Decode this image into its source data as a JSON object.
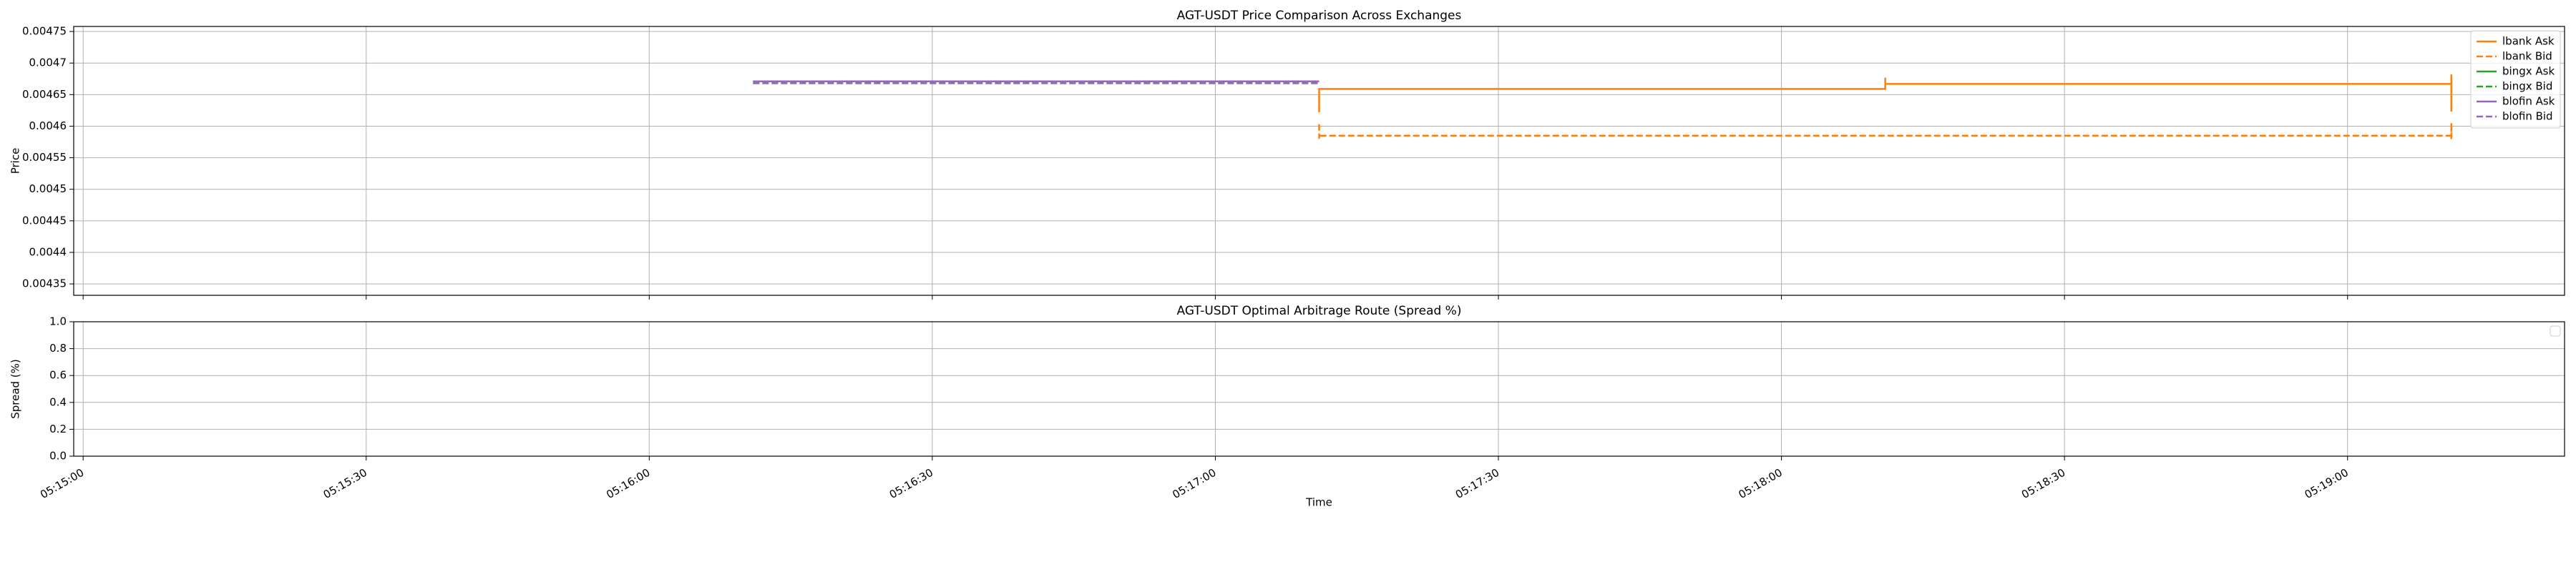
{
  "chart_data": [
    {
      "type": "line",
      "title": "AGT-USDT Price Comparison Across Exchanges",
      "ylabel": "Price",
      "ylim": [
        0.004332,
        0.004758
      ],
      "yticks": [
        0.00435,
        0.0044,
        0.00445,
        0.0045,
        0.00455,
        0.0046,
        0.00465,
        0.0047,
        0.00475
      ],
      "grid": true,
      "legend": "upper right",
      "series": [
        {
          "name": "lbank Ask",
          "color": "#ff7f0e",
          "style": "solid",
          "x": [
            "05:17:11",
            "05:17:11",
            "05:18:11",
            "05:18:11",
            "05:18:11",
            "05:19:11",
            "05:19:11",
            "05:19:11"
          ],
          "values": [
            0.004622,
            0.004659,
            0.004659,
            0.004677,
            0.004667,
            0.004667,
            0.004682,
            0.004623
          ]
        },
        {
          "name": "lbank Bid",
          "color": "#ff7f0e",
          "style": "dashed",
          "x": [
            "05:17:11",
            "05:17:11",
            "05:17:11",
            "05:18:11",
            "05:19:11",
            "05:19:11",
            "05:19:11"
          ],
          "values": [
            0.004603,
            0.00458,
            0.004585,
            0.004585,
            0.004585,
            0.004605,
            0.004578
          ]
        },
        {
          "name": "bingx Ask",
          "color": "#2ca02c",
          "style": "solid",
          "x": [
            "05:16:11",
            "05:17:11"
          ],
          "values": [
            0.004671,
            0.004671
          ]
        },
        {
          "name": "bingx Bid",
          "color": "#2ca02c",
          "style": "dashed",
          "x": [
            "05:16:11",
            "05:17:11"
          ],
          "values": [
            0.004668,
            0.004668
          ]
        },
        {
          "name": "blofin Ask",
          "color": "#9467bd",
          "style": "solid",
          "x": [
            "05:16:11",
            "05:17:11"
          ],
          "values": [
            0.004671,
            0.004671
          ]
        },
        {
          "name": "blofin Bid",
          "color": "#9467bd",
          "style": "dashed",
          "x": [
            "05:16:11",
            "05:17:11"
          ],
          "values": [
            0.004668,
            0.004668
          ]
        }
      ]
    },
    {
      "type": "line",
      "title": "AGT-USDT Optimal Arbitrage Route (Spread %)",
      "ylabel": "Spread (%)",
      "xlabel": "Time",
      "ylim": [
        0,
        1
      ],
      "yticks": [
        {
          "value": 0,
          "label": "0.0"
        },
        {
          "value": 0.2,
          "label": "0.2"
        },
        {
          "value": 0.4,
          "label": "0.4"
        },
        {
          "value": 0.6,
          "label": "0.6"
        },
        {
          "value": 0.8,
          "label": "0.8"
        },
        {
          "value": 1,
          "label": "1.0"
        }
      ],
      "xlim": [
        "05:14:59",
        "05:19:23"
      ],
      "xticks": [
        "05:15:00",
        "05:15:30",
        "05:16:00",
        "05:16:30",
        "05:17:00",
        "05:17:30",
        "05:18:00",
        "05:18:30",
        "05:19:00"
      ],
      "grid": true,
      "legend": "upper right",
      "series": []
    }
  ]
}
